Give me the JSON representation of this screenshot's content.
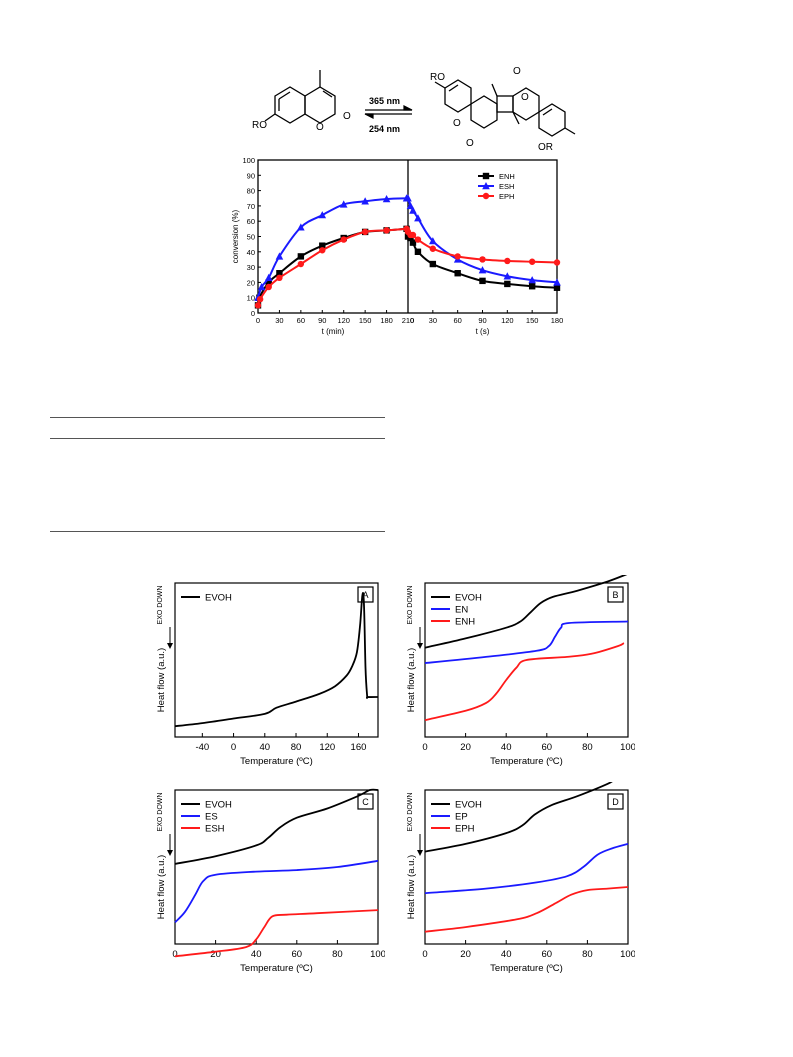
{
  "scheme": {
    "arrow_top_label": "365 nm",
    "arrow_bottom_label": "254 nm",
    "monomer_labels": [
      "RO",
      "O",
      "O"
    ],
    "dimer_labels": [
      "RO",
      "O",
      "O",
      "O",
      "O",
      "OR"
    ]
  },
  "colors": {
    "black": "#000000",
    "blue": "#1a1aff",
    "red": "#ff1a1a"
  },
  "chart_data": [
    {
      "type": "line",
      "ylabel": "conversion (%)",
      "ylim": [
        0,
        100
      ],
      "yticks": [
        "0",
        "10",
        "20",
        "30",
        "40",
        "50",
        "60",
        "70",
        "80",
        "90",
        "100"
      ],
      "legend_position": "top-right",
      "panels": [
        {
          "xlabel": "t (min)",
          "xlim": [
            0,
            210
          ],
          "xticks": [
            "0",
            "30",
            "60",
            "90",
            "120",
            "150",
            "180",
            "210"
          ]
        },
        {
          "xlabel": "t (s)",
          "xlim": [
            0,
            180
          ],
          "xticks": [
            "0",
            "30",
            "60",
            "90",
            "120",
            "150",
            "180"
          ]
        }
      ],
      "series": [
        {
          "name": "ENH",
          "color": "#000000",
          "marker": "square",
          "left_points": [
            [
              0,
              5
            ],
            [
              2,
              10
            ],
            [
              15,
              20
            ],
            [
              30,
              26
            ],
            [
              60,
              37
            ],
            [
              90,
              44
            ],
            [
              120,
              49
            ],
            [
              150,
              53
            ],
            [
              180,
              54
            ],
            [
              208,
              55
            ]
          ],
          "right_points": [
            [
              0,
              50
            ],
            [
              3,
              49
            ],
            [
              6,
              46
            ],
            [
              12,
              40
            ],
            [
              30,
              32
            ],
            [
              60,
              26
            ],
            [
              90,
              21
            ],
            [
              120,
              19
            ],
            [
              150,
              17.5
            ],
            [
              180,
              16.5
            ]
          ]
        },
        {
          "name": "ESH",
          "color": "#1a1aff",
          "marker": "triangle",
          "left_points": [
            [
              0,
              10
            ],
            [
              5,
              17
            ],
            [
              15,
              23
            ],
            [
              30,
              37
            ],
            [
              60,
              56
            ],
            [
              90,
              64
            ],
            [
              120,
              71
            ],
            [
              150,
              73
            ],
            [
              180,
              74.5
            ],
            [
              208,
              75
            ]
          ],
          "right_points": [
            [
              0,
              75
            ],
            [
              3,
              70
            ],
            [
              6,
              67
            ],
            [
              12,
              62
            ],
            [
              30,
              47
            ],
            [
              60,
              35
            ],
            [
              90,
              28
            ],
            [
              120,
              24
            ],
            [
              150,
              21.5
            ],
            [
              180,
              20
            ]
          ]
        },
        {
          "name": "EPH",
          "color": "#ff1a1a",
          "marker": "circle",
          "left_points": [
            [
              0,
              5
            ],
            [
              3,
              9
            ],
            [
              15,
              17
            ],
            [
              30,
              23
            ],
            [
              60,
              32
            ],
            [
              90,
              41
            ],
            [
              120,
              48
            ],
            [
              150,
              53
            ],
            [
              180,
              54
            ],
            [
              208,
              55
            ]
          ],
          "right_points": [
            [
              0,
              53
            ],
            [
              3,
              51
            ],
            [
              6,
              51
            ],
            [
              12,
              48
            ],
            [
              30,
              42
            ],
            [
              60,
              37
            ],
            [
              90,
              35
            ],
            [
              120,
              34
            ],
            [
              150,
              33.5
            ],
            [
              180,
              33
            ]
          ]
        }
      ]
    },
    {
      "type": "line",
      "panel_label": "A",
      "xlabel": "Temperature (ºC)",
      "ylabel": "Heat flow (a.u.)",
      "side_label": "EXO DOWN",
      "xlim": [
        -75,
        185
      ],
      "xticks": [
        "-40",
        "0",
        "40",
        "80",
        "120",
        "160"
      ],
      "series": [
        {
          "name": "EVOH",
          "color": "#000000",
          "points": [
            [
              -75,
              0.07
            ],
            [
              -40,
              0.09
            ],
            [
              0,
              0.12
            ],
            [
              40,
              0.15
            ],
            [
              55,
              0.19
            ],
            [
              80,
              0.23
            ],
            [
              110,
              0.28
            ],
            [
              130,
              0.33
            ],
            [
              145,
              0.4
            ],
            [
              152,
              0.46
            ],
            [
              158,
              0.55
            ],
            [
              162,
              0.72
            ],
            [
              165,
              0.92
            ],
            [
              167,
              0.87
            ],
            [
              169,
              0.45
            ],
            [
              171,
              0.27
            ],
            [
              172,
              0.26
            ],
            [
              185,
              0.26
            ]
          ]
        }
      ]
    },
    {
      "type": "line",
      "panel_label": "B",
      "xlabel": "Temperature (ºC)",
      "ylabel": "Heat flow (a.u.)",
      "side_label": "EXO DOWN",
      "xlim": [
        0,
        100
      ],
      "xticks": [
        "0",
        "20",
        "40",
        "60",
        "80",
        "100"
      ],
      "series": [
        {
          "name": "EVOH",
          "color": "#000000",
          "points": [
            [
              0,
              0.58
            ],
            [
              20,
              0.64
            ],
            [
              40,
              0.71
            ],
            [
              47,
              0.75
            ],
            [
              52,
              0.81
            ],
            [
              57,
              0.87
            ],
            [
              63,
              0.91
            ],
            [
              75,
              0.95
            ],
            [
              90,
              1.01
            ],
            [
              100,
              1.06
            ]
          ]
        },
        {
          "name": "EN",
          "color": "#1a1aff",
          "points": [
            [
              0,
              0.48
            ],
            [
              30,
              0.52
            ],
            [
              55,
              0.56
            ],
            [
              61,
              0.59
            ],
            [
              64,
              0.65
            ],
            [
              67,
              0.71
            ],
            [
              71,
              0.74
            ],
            [
              100,
              0.75
            ]
          ]
        },
        {
          "name": "ENH",
          "color": "#ff1a1a",
          "points": [
            [
              0,
              0.11
            ],
            [
              20,
              0.17
            ],
            [
              30,
              0.22
            ],
            [
              35,
              0.28
            ],
            [
              40,
              0.37
            ],
            [
              45,
              0.45
            ],
            [
              50,
              0.5
            ],
            [
              70,
              0.52
            ],
            [
              82,
              0.54
            ],
            [
              95,
              0.59
            ],
            [
              98,
              0.61
            ]
          ]
        }
      ]
    },
    {
      "type": "line",
      "panel_label": "C",
      "xlabel": "Temperature (ºC)",
      "ylabel": "Heat flow (a.u.)",
      "side_label": "EXO DOWN",
      "xlim": [
        0,
        100
      ],
      "xticks": [
        "0",
        "20",
        "40",
        "60",
        "80",
        "100"
      ],
      "series": [
        {
          "name": "EVOH",
          "color": "#000000",
          "points": [
            [
              0,
              0.52
            ],
            [
              20,
              0.57
            ],
            [
              40,
              0.64
            ],
            [
              46,
              0.69
            ],
            [
              52,
              0.76
            ],
            [
              60,
              0.82
            ],
            [
              75,
              0.88
            ],
            [
              90,
              0.96
            ],
            [
              96,
              1.0
            ],
            [
              100,
              1.0
            ]
          ]
        },
        {
          "name": "ES",
          "color": "#1a1aff",
          "points": [
            [
              0,
              0.14
            ],
            [
              5,
              0.21
            ],
            [
              10,
              0.32
            ],
            [
              14,
              0.41
            ],
            [
              20,
              0.45
            ],
            [
              40,
              0.47
            ],
            [
              60,
              0.48
            ],
            [
              80,
              0.5
            ],
            [
              100,
              0.54
            ]
          ]
        },
        {
          "name": "ESH",
          "color": "#ff1a1a",
          "points": [
            [
              0,
              -0.08
            ],
            [
              20,
              -0.05
            ],
            [
              35,
              -0.02
            ],
            [
              40,
              0.03
            ],
            [
              44,
              0.11
            ],
            [
              48,
              0.18
            ],
            [
              55,
              0.19
            ],
            [
              70,
              0.2
            ],
            [
              100,
              0.22
            ]
          ]
        }
      ]
    },
    {
      "type": "line",
      "panel_label": "D",
      "xlabel": "Temperature (ºC)",
      "ylabel": "Heat flow (a.u.)",
      "side_label": "EXO DOWN",
      "xlim": [
        0,
        100
      ],
      "xticks": [
        "0",
        "20",
        "40",
        "60",
        "80",
        "100"
      ],
      "series": [
        {
          "name": "EVOH",
          "color": "#000000",
          "points": [
            [
              0,
              0.6
            ],
            [
              20,
              0.65
            ],
            [
              40,
              0.72
            ],
            [
              48,
              0.77
            ],
            [
              54,
              0.84
            ],
            [
              62,
              0.9
            ],
            [
              75,
              0.96
            ],
            [
              90,
              1.04
            ],
            [
              95,
              1.08
            ],
            [
              100,
              1.08
            ]
          ]
        },
        {
          "name": "EP",
          "color": "#1a1aff",
          "points": [
            [
              0,
              0.33
            ],
            [
              30,
              0.36
            ],
            [
              55,
              0.4
            ],
            [
              70,
              0.44
            ],
            [
              78,
              0.5
            ],
            [
              85,
              0.58
            ],
            [
              92,
              0.62
            ],
            [
              100,
              0.65
            ]
          ]
        },
        {
          "name": "EPH",
          "color": "#ff1a1a",
          "points": [
            [
              0,
              0.08
            ],
            [
              20,
              0.11
            ],
            [
              45,
              0.16
            ],
            [
              55,
              0.2
            ],
            [
              65,
              0.27
            ],
            [
              72,
              0.32
            ],
            [
              80,
              0.35
            ],
            [
              90,
              0.36
            ],
            [
              100,
              0.37
            ]
          ]
        }
      ]
    }
  ]
}
